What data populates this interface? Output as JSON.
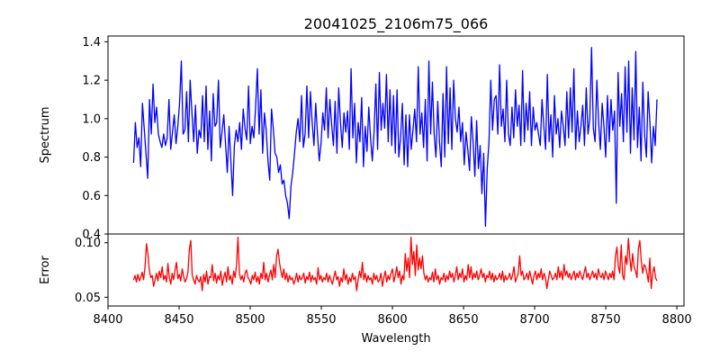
{
  "chart_data": {
    "type": "line",
    "title": "20041025_2106m75_066",
    "xlabel": "Wavelength",
    "x_ticks": [
      8400,
      8450,
      8500,
      8550,
      8600,
      8650,
      8700,
      8750,
      8800
    ],
    "xlim": [
      8400,
      8805
    ],
    "x_range": [
      8418,
      8786
    ],
    "panels": [
      {
        "ylabel": "Spectrum",
        "ylim": [
          0.4,
          1.43
        ],
        "y_ticks": [
          0.4,
          0.6,
          0.8,
          1.0,
          1.2,
          1.4
        ],
        "y_tick_labels": [
          "0.4",
          "0.6",
          "0.8",
          "1.0",
          "1.2",
          "1.4"
        ],
        "color": "#0000ff",
        "series": [
          {
            "values": [
              0.77,
              0.98,
              0.85,
              0.9,
              0.75,
              1.08,
              0.95,
              0.82,
              0.69,
              1.1,
              0.92,
              1.18,
              0.98,
              1.06,
              0.92,
              0.88,
              0.85,
              0.92,
              0.86,
              0.9,
              1.1,
              0.84,
              0.93,
              1.02,
              0.87,
              0.96,
              1.08,
              1.3,
              0.92,
              0.94,
              1.14,
              0.88,
              1.2,
              1.03,
              0.88,
              1.07,
              0.82,
              0.94,
              0.9,
              1.12,
              0.88,
              1.17,
              0.84,
              1.04,
              0.78,
              1.13,
              0.96,
              0.98,
              1.2,
              0.85,
              0.93,
              1.02,
              0.87,
              0.72,
              0.96,
              0.78,
              0.6,
              0.86,
              0.94,
              0.88,
              0.98,
              0.84,
              1.05,
              0.95,
              0.89,
              1.17,
              0.87,
              0.96,
              0.9,
              1.06,
              1.26,
              0.92,
              1.15,
              0.82,
              1.03,
              0.94,
              0.78,
              0.68,
              1.05,
              0.95,
              0.82,
              0.8,
              0.72,
              0.76,
              0.66,
              0.68,
              0.6,
              0.56,
              0.48,
              0.65,
              0.72,
              0.82,
              0.93,
              1.0,
              0.88,
              1.12,
              0.85,
              0.92,
              1.17,
              0.9,
              1.14,
              0.98,
              0.86,
              1.08,
              0.92,
              0.78,
              0.87,
              1.03,
              0.94,
              1.16,
              0.9,
              1.1,
              0.97,
              0.86,
              1.09,
              0.82,
              1.16,
              0.98,
              0.85,
              1.03,
              0.93,
              1.04,
              0.84,
              1.26,
              0.9,
              1.08,
              0.77,
              0.98,
              0.88,
              1.11,
              0.75,
              0.96,
              0.83,
              1.06,
              0.9,
              0.78,
              0.93,
              1.18,
              0.84,
              1.24,
              0.94,
              1.08,
              0.95,
              1.23,
              0.88,
              1.15,
              0.86,
              1.12,
              0.82,
              1.15,
              0.8,
              0.9,
              1.08,
              0.76,
              1.02,
              0.75,
              1.02,
              0.84,
              0.94,
              1.05,
              0.88,
              1.27,
              0.92,
              1.03,
              0.85,
              1.1,
              0.78,
              1.3,
              0.92,
              1.19,
              0.92,
              0.8,
              1.09,
              0.88,
              0.75,
              1.13,
              0.8,
              1.27,
              0.87,
              1.16,
              0.84,
              1.2,
              1.0,
              0.93,
              1.06,
              0.88,
              0.98,
              0.76,
              0.93,
              0.84,
              0.73,
              1.01,
              0.88,
              0.7,
              0.99,
              0.74,
              0.86,
              0.61,
              0.82,
              0.44,
              0.74,
              0.88,
              1.2,
              0.94,
              1.1,
              1.12,
              0.92,
              1.28,
              0.96,
              1.05,
              0.88,
              1.2,
              0.92,
              0.86,
              1.06,
              0.9,
              1.15,
              0.96,
              1.07,
              0.86,
              1.25,
              0.88,
              1.08,
              0.94,
              1.14,
              0.86,
              1.06,
              0.94,
              0.98,
              0.92,
              0.86,
              1.1,
              0.96,
              0.84,
              1.23,
              0.88,
              1.02,
              0.8,
              1.12,
              0.92,
              1.0,
              0.85,
              1.04,
              0.96,
              0.86,
              1.14,
              0.9,
              1.16,
              0.93,
              1.26,
              0.84,
              1.04,
              0.88,
              0.96,
              1.07,
              0.86,
              1.16,
              0.92,
              1.0,
              1.37,
              0.95,
              0.88,
              1.2,
              0.98,
              0.84,
              1.08,
              0.96,
              0.8,
              1.12,
              0.88,
              1.1,
              0.94,
              1.04,
              0.56,
              1.24,
              0.96,
              1.13,
              0.88,
              1.27,
              0.93,
              1.3,
              0.82,
              1.16,
              0.89,
              1.35,
              0.85,
              1.06,
              0.78,
              1.19,
              0.92,
              0.8,
              1.14,
              0.98,
              0.77,
              0.96,
              0.86,
              1.1
            ]
          }
        ]
      },
      {
        "ylabel": "Error",
        "ylim": [
          0.042,
          0.108
        ],
        "y_ticks": [
          0.05,
          0.1
        ],
        "y_tick_labels": [
          "0.05",
          "0.10"
        ],
        "color": "#ff0000",
        "series": [
          {
            "values": [
              0.066,
              0.07,
              0.064,
              0.071,
              0.065,
              0.068,
              0.073,
              0.066,
              0.078,
              0.099,
              0.09,
              0.075,
              0.068,
              0.07,
              0.06,
              0.066,
              0.072,
              0.065,
              0.074,
              0.068,
              0.078,
              0.066,
              0.07,
              0.064,
              0.081,
              0.068,
              0.062,
              0.072,
              0.066,
              0.075,
              0.082,
              0.067,
              0.071,
              0.065,
              0.076,
              0.069,
              0.064,
              0.067,
              0.073,
              0.094,
              0.102,
              0.07,
              0.066,
              0.062,
              0.07,
              0.066,
              0.064,
              0.069,
              0.056,
              0.071,
              0.064,
              0.074,
              0.062,
              0.069,
              0.068,
              0.08,
              0.065,
              0.072,
              0.063,
              0.07,
              0.066,
              0.074,
              0.061,
              0.068,
              0.073,
              0.064,
              0.078,
              0.066,
              0.07,
              0.062,
              0.074,
              0.068,
              0.08,
              0.105,
              0.072,
              0.066,
              0.07,
              0.064,
              0.072,
              0.075,
              0.068,
              0.066,
              0.062,
              0.07,
              0.066,
              0.073,
              0.064,
              0.069,
              0.062,
              0.072,
              0.067,
              0.082,
              0.066,
              0.072,
              0.064,
              0.07,
              0.075,
              0.066,
              0.08,
              0.068,
              0.088,
              0.094,
              0.082,
              0.074,
              0.068,
              0.076,
              0.066,
              0.072,
              0.064,
              0.07,
              0.066,
              0.068,
              0.062,
              0.066,
              0.072,
              0.064,
              0.07,
              0.066,
              0.068,
              0.072,
              0.063,
              0.069,
              0.066,
              0.073,
              0.064,
              0.07,
              0.066,
              0.068,
              0.062,
              0.077,
              0.066,
              0.07,
              0.064,
              0.068,
              0.066,
              0.072,
              0.064,
              0.07,
              0.066,
              0.062,
              0.068,
              0.074,
              0.066,
              0.069,
              0.06,
              0.068,
              0.064,
              0.076,
              0.066,
              0.071,
              0.062,
              0.068,
              0.064,
              0.072,
              0.066,
              0.069,
              0.056,
              0.066,
              0.074,
              0.068,
              0.082,
              0.066,
              0.072,
              0.064,
              0.07,
              0.066,
              0.068,
              0.062,
              0.072,
              0.066,
              0.07,
              0.064,
              0.066,
              0.072,
              0.06,
              0.068,
              0.074,
              0.064,
              0.07,
              0.066,
              0.072,
              0.076,
              0.064,
              0.07,
              0.078,
              0.068,
              0.074,
              0.062,
              0.07,
              0.066,
              0.09,
              0.074,
              0.086,
              0.068,
              0.105,
              0.08,
              0.092,
              0.07,
              0.098,
              0.075,
              0.086,
              0.076,
              0.088,
              0.072,
              0.066,
              0.07,
              0.064,
              0.068,
              0.066,
              0.073,
              0.064,
              0.076,
              0.066,
              0.07,
              0.062,
              0.068,
              0.066,
              0.072,
              0.064,
              0.07,
              0.066,
              0.074,
              0.068,
              0.072,
              0.064,
              0.07,
              0.078,
              0.066,
              0.072,
              0.068,
              0.076,
              0.064,
              0.07,
              0.066,
              0.08,
              0.068,
              0.078,
              0.066,
              0.072,
              0.068,
              0.074,
              0.066,
              0.07,
              0.076,
              0.068,
              0.072,
              0.064,
              0.07,
              0.068,
              0.074,
              0.066,
              0.072,
              0.064,
              0.07,
              0.066,
              0.068,
              0.072,
              0.066,
              0.074,
              0.064,
              0.07,
              0.066,
              0.068,
              0.072,
              0.066,
              0.07,
              0.078,
              0.064,
              0.068,
              0.072,
              0.088,
              0.07,
              0.074,
              0.066,
              0.068,
              0.072,
              0.066,
              0.074,
              0.068,
              0.062,
              0.07,
              0.074,
              0.066,
              0.072,
              0.068,
              0.076,
              0.066,
              0.072,
              0.068,
              0.058,
              0.066,
              0.074,
              0.07,
              0.066,
              0.068,
              0.072,
              0.066,
              0.078,
              0.068,
              0.074,
              0.066,
              0.08,
              0.07,
              0.074,
              0.068,
              0.072,
              0.066,
              0.07,
              0.074,
              0.066,
              0.072,
              0.068,
              0.074,
              0.07,
              0.066,
              0.072,
              0.078,
              0.068,
              0.072,
              0.066,
              0.07,
              0.074,
              0.068,
              0.072,
              0.066,
              0.076,
              0.07,
              0.068,
              0.072,
              0.066,
              0.074,
              0.07,
              0.066,
              0.072,
              0.068,
              0.074,
              0.066,
              0.088,
              0.096,
              0.078,
              0.072,
              0.098,
              0.07,
              0.066,
              0.088,
              0.08,
              0.104,
              0.086,
              0.074,
              0.09,
              0.078,
              0.074,
              0.068,
              0.094,
              0.102,
              0.084,
              0.072,
              0.08,
              0.078,
              0.072,
              0.064,
              0.086,
              0.058,
              0.072,
              0.078,
              0.068,
              0.065
            ]
          }
        ]
      }
    ]
  }
}
